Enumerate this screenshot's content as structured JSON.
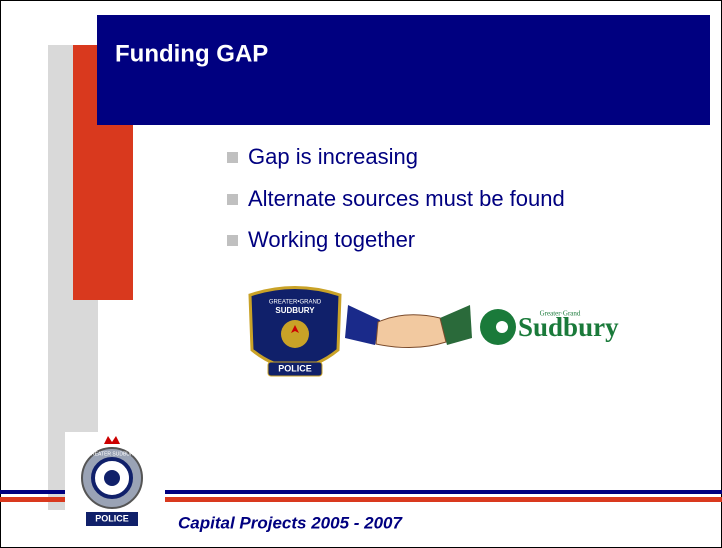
{
  "header": {
    "title": "Funding GAP"
  },
  "bullets": [
    "Gap is increasing",
    "Alternate sources must be found",
    "Working together"
  ],
  "logos": {
    "police_badge": {
      "top": "GREATER•GRAND",
      "middle": "SUDBURY",
      "bottom": "POLICE"
    },
    "city": {
      "small": "Greater·Grand",
      "name": "Sudbury"
    },
    "corner_badge": {
      "ring": "GREATER SUDBURY",
      "bottom": "POLICE"
    }
  },
  "footer": "Capital Projects 2005 - 2007"
}
